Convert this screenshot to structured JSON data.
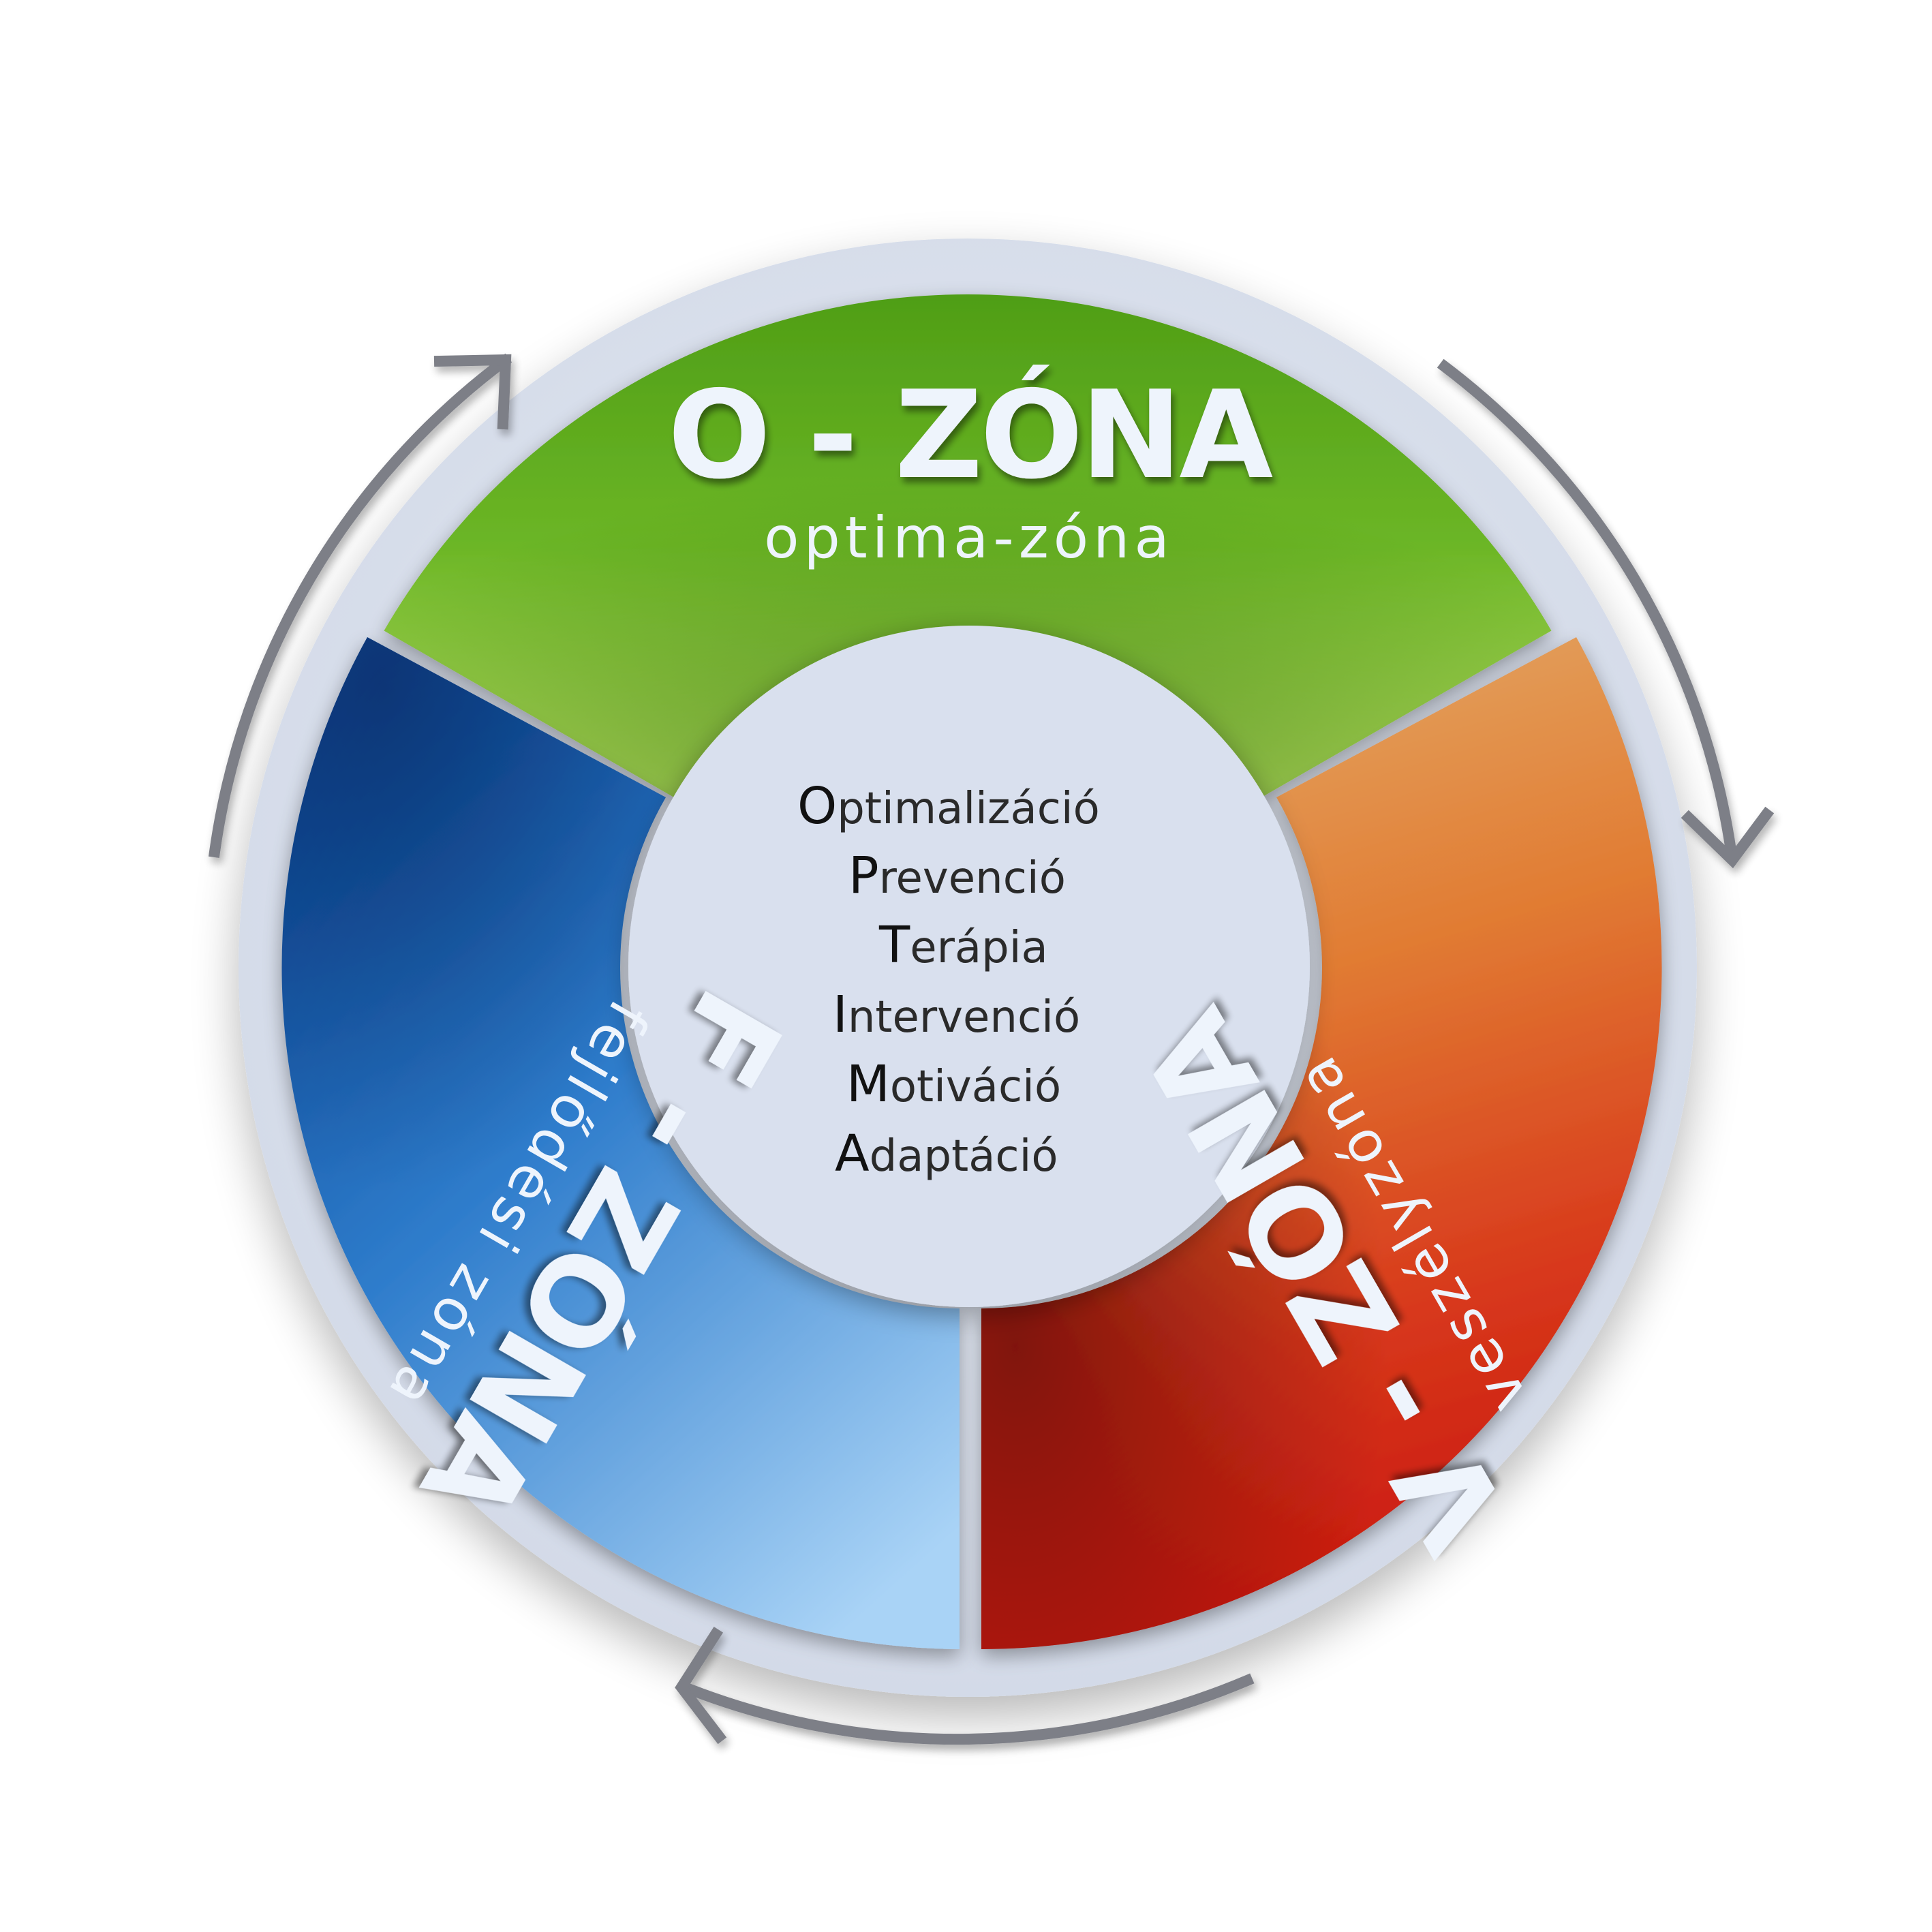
{
  "zones": {
    "o": {
      "title": "O - ZÓNA",
      "subtitle": "optima-zóna",
      "color": "#6ab327"
    },
    "v": {
      "title": "V - ZÓNA",
      "subtitle": "veszélyzóna",
      "color": "#d8361a"
    },
    "f": {
      "title": "F - ZÓNA",
      "subtitle": "fejlődési zóna",
      "color": "#2a78c8"
    }
  },
  "center": {
    "items": [
      {
        "initial": "O",
        "rest": "ptimalizáció"
      },
      {
        "initial": "P",
        "rest": "revenció"
      },
      {
        "initial": "T",
        "rest": "erápia"
      },
      {
        "initial": "I",
        "rest": "ntervenció"
      },
      {
        "initial": "M",
        "rest": "otiváció"
      },
      {
        "initial": "A",
        "rest": "daptáció"
      }
    ]
  },
  "arrows": {
    "count": 3,
    "icon": "cycle-arrow-icon",
    "color": "#7d7f87"
  },
  "background": {
    "ring_color": "#dbe1ee",
    "center_color": "#d9e0ee"
  }
}
